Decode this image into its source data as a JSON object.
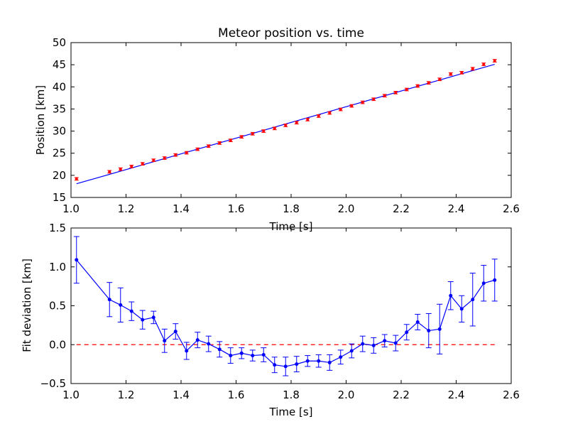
{
  "chart_data": [
    {
      "type": "scatter",
      "title": "Meteor position vs. time",
      "xlabel": "Time [s]",
      "ylabel": "Position [km]",
      "xlim": [
        1.0,
        2.6
      ],
      "ylim": [
        15,
        50
      ],
      "xticks": [
        "1.0",
        "1.2",
        "1.4",
        "1.6",
        "1.8",
        "2.0",
        "2.2",
        "2.4",
        "2.6"
      ],
      "yticks": [
        "15",
        "20",
        "25",
        "30",
        "35",
        "40",
        "45",
        "50"
      ],
      "grid": false,
      "colors": {
        "points": "#ff0000",
        "fit": "#0000ff"
      },
      "x": [
        1.02,
        1.14,
        1.18,
        1.22,
        1.26,
        1.3,
        1.34,
        1.38,
        1.42,
        1.46,
        1.5,
        1.54,
        1.58,
        1.62,
        1.66,
        1.7,
        1.74,
        1.78,
        1.82,
        1.86,
        1.9,
        1.94,
        1.98,
        2.02,
        2.06,
        2.1,
        2.14,
        2.18,
        2.22,
        2.26,
        2.3,
        2.34,
        2.38,
        2.42,
        2.46,
        2.5,
        2.54
      ],
      "y": [
        19.2,
        20.8,
        21.4,
        22.0,
        22.6,
        23.4,
        23.9,
        24.6,
        25.1,
        25.9,
        26.6,
        27.3,
        27.9,
        28.7,
        29.4,
        30.0,
        30.6,
        31.3,
        31.9,
        32.6,
        33.4,
        34.1,
        34.9,
        35.7,
        36.5,
        37.2,
        38.0,
        38.7,
        39.4,
        40.2,
        40.9,
        41.7,
        42.9,
        43.2,
        44.1,
        45.1,
        45.9
      ],
      "yerr": 0.3,
      "fit_line": {
        "x": [
          1.02,
          2.54
        ],
        "y": [
          18.1,
          45.1
        ]
      }
    },
    {
      "type": "line",
      "title": "",
      "xlabel": "Time [s]",
      "ylabel": "Fit deviation [km]",
      "xlim": [
        1.0,
        2.6
      ],
      "ylim": [
        -0.5,
        1.5
      ],
      "xticks": [
        "1.0",
        "1.2",
        "1.4",
        "1.6",
        "1.8",
        "2.0",
        "2.2",
        "2.4",
        "2.6"
      ],
      "yticks": [
        "−0.5",
        "0.0",
        "0.5",
        "1.0",
        "1.5"
      ],
      "grid": false,
      "colors": {
        "series": "#0000ff",
        "zero_line": "#ff0000"
      },
      "x": [
        1.02,
        1.14,
        1.18,
        1.22,
        1.26,
        1.3,
        1.34,
        1.38,
        1.42,
        1.46,
        1.5,
        1.54,
        1.58,
        1.62,
        1.66,
        1.7,
        1.74,
        1.78,
        1.82,
        1.86,
        1.9,
        1.94,
        1.98,
        2.02,
        2.06,
        2.1,
        2.14,
        2.18,
        2.22,
        2.26,
        2.3,
        2.34,
        2.38,
        2.42,
        2.46,
        2.5,
        2.54
      ],
      "y": [
        1.09,
        0.58,
        0.51,
        0.43,
        0.32,
        0.35,
        0.05,
        0.17,
        -0.08,
        0.06,
        0.01,
        -0.06,
        -0.14,
        -0.11,
        -0.14,
        -0.13,
        -0.26,
        -0.28,
        -0.25,
        -0.21,
        -0.21,
        -0.23,
        -0.16,
        -0.08,
        0.01,
        -0.01,
        0.05,
        0.02,
        0.16,
        0.29,
        0.18,
        0.2,
        0.63,
        0.46,
        0.58,
        0.79,
        0.83
      ],
      "yerr": [
        0.3,
        0.22,
        0.22,
        0.12,
        0.12,
        0.08,
        0.15,
        0.1,
        0.11,
        0.1,
        0.1,
        0.1,
        0.1,
        0.07,
        0.07,
        0.09,
        0.1,
        0.12,
        0.1,
        0.07,
        0.08,
        0.1,
        0.09,
        0.09,
        0.1,
        0.1,
        0.08,
        0.1,
        0.1,
        0.1,
        0.22,
        0.32,
        0.18,
        0.17,
        0.34,
        0.23,
        0.27
      ],
      "zero_line": 0.0
    }
  ]
}
